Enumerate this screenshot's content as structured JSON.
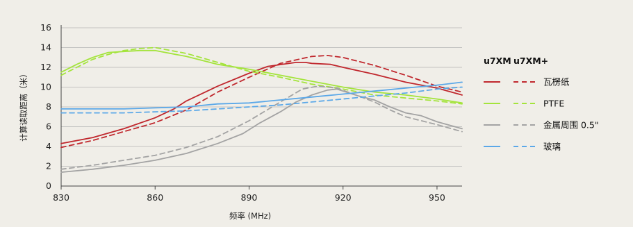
{
  "chart_data": {
    "type": "line",
    "xlabel": "频率 (MHz)",
    "ylabel": "计算读取距离（米）",
    "xlim": [
      830,
      958
    ],
    "ylim": [
      0,
      16
    ],
    "x_ticks": [
      830,
      860,
      890,
      920,
      950
    ],
    "y_ticks": [
      0,
      2,
      4,
      6,
      8,
      10,
      12,
      14,
      16
    ],
    "grid": "horizontal",
    "legend": {
      "placement": "right",
      "headers": [
        "u7XM",
        "u7XM+"
      ],
      "rows": [
        {
          "label": "瓦楞纸",
          "color": "#c0272d"
        },
        {
          "label": "PTFE",
          "color": "#a4e43c"
        },
        {
          "label": "金属周围 0.5\"",
          "color": "#a3a3a3"
        },
        {
          "label": "玻璃",
          "color": "#5ba8e8"
        }
      ]
    },
    "series": [
      {
        "material": "瓦楞纸",
        "chip": "u7XM",
        "style": "solid",
        "color": "#c0272d",
        "points": [
          [
            830,
            4.3
          ],
          [
            840,
            4.9
          ],
          [
            850,
            5.8
          ],
          [
            860,
            6.9
          ],
          [
            866,
            7.8
          ],
          [
            870,
            8.6
          ],
          [
            880,
            10.1
          ],
          [
            890,
            11.4
          ],
          [
            896,
            12.1
          ],
          [
            905,
            12.5
          ],
          [
            908,
            12.5
          ],
          [
            910,
            12.4
          ],
          [
            916,
            12.3
          ],
          [
            920,
            12.0
          ],
          [
            930,
            11.3
          ],
          [
            940,
            10.5
          ],
          [
            950,
            9.9
          ],
          [
            958,
            9.2
          ]
        ]
      },
      {
        "material": "瓦楞纸",
        "chip": "u7XM+",
        "style": "dashed",
        "color": "#c0272d",
        "points": [
          [
            830,
            3.9
          ],
          [
            840,
            4.6
          ],
          [
            850,
            5.5
          ],
          [
            860,
            6.4
          ],
          [
            870,
            7.7
          ],
          [
            880,
            9.5
          ],
          [
            890,
            11.0
          ],
          [
            900,
            12.4
          ],
          [
            910,
            13.1
          ],
          [
            915,
            13.2
          ],
          [
            920,
            13.0
          ],
          [
            930,
            12.2
          ],
          [
            940,
            11.2
          ],
          [
            950,
            10.1
          ],
          [
            958,
            9.5
          ]
        ]
      },
      {
        "material": "PTFE",
        "chip": "u7XM",
        "style": "solid",
        "color": "#a4e43c",
        "points": [
          [
            830,
            11.5
          ],
          [
            835,
            12.3
          ],
          [
            840,
            13.0
          ],
          [
            845,
            13.5
          ],
          [
            850,
            13.6
          ],
          [
            855,
            13.7
          ],
          [
            860,
            13.7
          ],
          [
            870,
            13.1
          ],
          [
            880,
            12.3
          ],
          [
            890,
            11.8
          ],
          [
            900,
            11.2
          ],
          [
            910,
            10.6
          ],
          [
            920,
            10.0
          ],
          [
            930,
            9.5
          ],
          [
            940,
            9.2
          ],
          [
            950,
            8.8
          ],
          [
            958,
            8.4
          ]
        ]
      },
      {
        "material": "PTFE",
        "chip": "u7XM+",
        "style": "dashed",
        "color": "#a4e43c",
        "points": [
          [
            830,
            11.2
          ],
          [
            835,
            12.0
          ],
          [
            840,
            12.8
          ],
          [
            845,
            13.3
          ],
          [
            850,
            13.7
          ],
          [
            855,
            13.9
          ],
          [
            860,
            14.0
          ],
          [
            870,
            13.4
          ],
          [
            880,
            12.5
          ],
          [
            890,
            11.6
          ],
          [
            900,
            11.0
          ],
          [
            910,
            10.3
          ],
          [
            920,
            9.8
          ],
          [
            930,
            9.2
          ],
          [
            940,
            8.9
          ],
          [
            950,
            8.6
          ],
          [
            958,
            8.3
          ]
        ]
      },
      {
        "material": "金属周围 0.5\"",
        "chip": "u7XM",
        "style": "solid",
        "color": "#a3a3a3",
        "points": [
          [
            830,
            1.4
          ],
          [
            840,
            1.7
          ],
          [
            850,
            2.1
          ],
          [
            860,
            2.6
          ],
          [
            870,
            3.3
          ],
          [
            880,
            4.3
          ],
          [
            888,
            5.3
          ],
          [
            893,
            6.3
          ],
          [
            900,
            7.5
          ],
          [
            905,
            8.5
          ],
          [
            910,
            9.2
          ],
          [
            915,
            9.7
          ],
          [
            918,
            9.8
          ],
          [
            920,
            9.6
          ],
          [
            925,
            9.1
          ],
          [
            930,
            8.7
          ],
          [
            935,
            8.0
          ],
          [
            940,
            7.4
          ],
          [
            945,
            7.1
          ],
          [
            950,
            6.5
          ],
          [
            958,
            5.8
          ]
        ]
      },
      {
        "material": "金属周围 0.5\"",
        "chip": "u7XM+",
        "style": "dashed",
        "color": "#a3a3a3",
        "points": [
          [
            830,
            1.7
          ],
          [
            840,
            2.1
          ],
          [
            850,
            2.6
          ],
          [
            860,
            3.1
          ],
          [
            870,
            3.9
          ],
          [
            880,
            5.0
          ],
          [
            890,
            6.6
          ],
          [
            900,
            8.5
          ],
          [
            907,
            9.8
          ],
          [
            912,
            10.1
          ],
          [
            918,
            9.9
          ],
          [
            925,
            9.1
          ],
          [
            930,
            8.5
          ],
          [
            935,
            7.7
          ],
          [
            940,
            7.0
          ],
          [
            950,
            6.2
          ],
          [
            958,
            5.5
          ]
        ]
      },
      {
        "material": "玻璃",
        "chip": "u7XM",
        "style": "solid",
        "color": "#5ba8e8",
        "points": [
          [
            830,
            7.8
          ],
          [
            840,
            7.8
          ],
          [
            850,
            7.8
          ],
          [
            860,
            7.9
          ],
          [
            870,
            8.0
          ],
          [
            880,
            8.3
          ],
          [
            890,
            8.4
          ],
          [
            900,
            8.7
          ],
          [
            910,
            9.0
          ],
          [
            920,
            9.3
          ],
          [
            930,
            9.6
          ],
          [
            940,
            9.9
          ],
          [
            950,
            10.2
          ],
          [
            958,
            10.5
          ]
        ]
      },
      {
        "material": "玻璃",
        "chip": "u7XM+",
        "style": "dashed",
        "color": "#5ba8e8",
        "points": [
          [
            830,
            7.4
          ],
          [
            840,
            7.4
          ],
          [
            850,
            7.4
          ],
          [
            860,
            7.5
          ],
          [
            870,
            7.6
          ],
          [
            880,
            7.8
          ],
          [
            890,
            8.0
          ],
          [
            900,
            8.2
          ],
          [
            910,
            8.5
          ],
          [
            920,
            8.8
          ],
          [
            930,
            9.1
          ],
          [
            940,
            9.4
          ],
          [
            950,
            9.8
          ],
          [
            958,
            10.0
          ]
        ]
      }
    ]
  }
}
